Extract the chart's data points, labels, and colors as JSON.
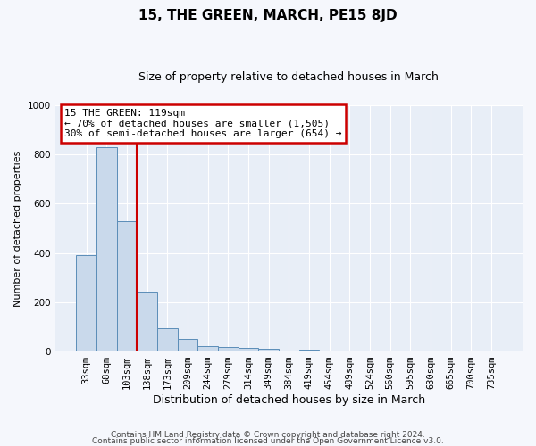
{
  "title": "15, THE GREEN, MARCH, PE15 8JD",
  "subtitle": "Size of property relative to detached houses in March",
  "xlabel": "Distribution of detached houses by size in March",
  "ylabel": "Number of detached properties",
  "bar_labels": [
    "33sqm",
    "68sqm",
    "103sqm",
    "138sqm",
    "173sqm",
    "209sqm",
    "244sqm",
    "279sqm",
    "314sqm",
    "349sqm",
    "384sqm",
    "419sqm",
    "454sqm",
    "489sqm",
    "524sqm",
    "560sqm",
    "595sqm",
    "630sqm",
    "665sqm",
    "700sqm",
    "735sqm"
  ],
  "bar_values": [
    390,
    830,
    530,
    242,
    95,
    50,
    22,
    18,
    15,
    10,
    0,
    8,
    0,
    0,
    0,
    0,
    0,
    0,
    0,
    0,
    0
  ],
  "bar_color": "#c9d9eb",
  "bar_edge_color": "#5b8db8",
  "vline_x": 2.5,
  "vline_color": "#cc0000",
  "annotation_title": "15 THE GREEN: 119sqm",
  "annotation_line1": "← 70% of detached houses are smaller (1,505)",
  "annotation_line2": "30% of semi-detached houses are larger (654) →",
  "footer_line1": "Contains HM Land Registry data © Crown copyright and database right 2024.",
  "footer_line2": "Contains public sector information licensed under the Open Government Licence v3.0.",
  "ylim": [
    0,
    1000
  ],
  "plot_bg_color": "#e8eef7",
  "fig_bg_color": "#f5f7fc",
  "grid_color": "#ffffff",
  "title_fontsize": 11,
  "subtitle_fontsize": 9,
  "ylabel_fontsize": 8,
  "xlabel_fontsize": 9,
  "tick_fontsize": 7.5,
  "footer_fontsize": 6.5,
  "annot_fontsize": 8
}
